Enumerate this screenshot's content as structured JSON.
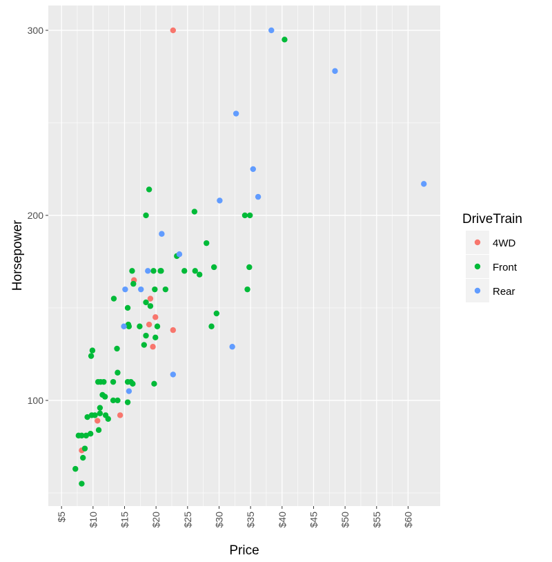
{
  "chart_data": {
    "type": "scatter",
    "title": "",
    "xlabel": "Price",
    "ylabel": "Horsepower",
    "xlim": [
      2.9,
      65.1
    ],
    "ylim": [
      42.9,
      313.4
    ],
    "x_ticks": [
      5,
      10,
      15,
      20,
      25,
      30,
      35,
      40,
      45,
      50,
      55,
      60
    ],
    "x_tick_labels": [
      "$5",
      "$10",
      "$15",
      "$20",
      "$25",
      "$30",
      "$35",
      "$40",
      "$45",
      "$50",
      "$55",
      "$60"
    ],
    "y_ticks": [
      100,
      200,
      300
    ],
    "y_tick_labels": [
      "100",
      "200",
      "300"
    ],
    "grid": true,
    "legend": {
      "title": "DriveTrain",
      "position": "right",
      "entries": [
        "4WD",
        "Front",
        "Rear"
      ]
    },
    "colors": {
      "4WD": "#F8766D",
      "Front": "#00BA38",
      "Rear": "#619CFF"
    },
    "series": [
      {
        "name": "4WD",
        "points": [
          [
            22.7,
            300
          ],
          [
            16.5,
            165
          ],
          [
            19.1,
            155
          ],
          [
            19.9,
            145
          ],
          [
            18.9,
            141
          ],
          [
            22.7,
            138
          ],
          [
            19.5,
            129
          ],
          [
            10.7,
            89
          ],
          [
            14.3,
            92
          ],
          [
            8.2,
            73
          ]
        ]
      },
      {
        "name": "Front",
        "points": [
          [
            40.4,
            295
          ],
          [
            18.9,
            214
          ],
          [
            26.1,
            202
          ],
          [
            18.4,
            200
          ],
          [
            34.9,
            200
          ],
          [
            34.1,
            200
          ],
          [
            28.0,
            185
          ],
          [
            23.3,
            178
          ],
          [
            34.8,
            172
          ],
          [
            26.2,
            170
          ],
          [
            26.9,
            168
          ],
          [
            29.2,
            172
          ],
          [
            24.5,
            170
          ],
          [
            16.2,
            170
          ],
          [
            19.6,
            170
          ],
          [
            20.7,
            170
          ],
          [
            20.8,
            170
          ],
          [
            16.4,
            163
          ],
          [
            19.8,
            160
          ],
          [
            21.5,
            160
          ],
          [
            34.5,
            160
          ],
          [
            13.3,
            155
          ],
          [
            18.4,
            153
          ],
          [
            19.1,
            151
          ],
          [
            15.5,
            150
          ],
          [
            29.6,
            147
          ],
          [
            15.6,
            141
          ],
          [
            15.7,
            140
          ],
          [
            17.4,
            140
          ],
          [
            20.2,
            140
          ],
          [
            28.8,
            140
          ],
          [
            18.4,
            135
          ],
          [
            19.9,
            134
          ],
          [
            18.1,
            130
          ],
          [
            9.9,
            127
          ],
          [
            9.7,
            124
          ],
          [
            13.8,
            128
          ],
          [
            13.9,
            115
          ],
          [
            10.8,
            110
          ],
          [
            11.2,
            110
          ],
          [
            11.7,
            110
          ],
          [
            13.2,
            110
          ],
          [
            15.5,
            110
          ],
          [
            16.0,
            110
          ],
          [
            16.3,
            109
          ],
          [
            19.7,
            109
          ],
          [
            11.5,
            103
          ],
          [
            11.9,
            102
          ],
          [
            13.2,
            100
          ],
          [
            13.9,
            100
          ],
          [
            15.5,
            99
          ],
          [
            11.1,
            96
          ],
          [
            11.1,
            93
          ],
          [
            9.1,
            91
          ],
          [
            9.8,
            92
          ],
          [
            10.3,
            92
          ],
          [
            12.0,
            92
          ],
          [
            12.4,
            90
          ],
          [
            10.9,
            84
          ],
          [
            7.7,
            81
          ],
          [
            8.2,
            81
          ],
          [
            8.9,
            81
          ],
          [
            9.6,
            82
          ],
          [
            8.7,
            74
          ],
          [
            8.4,
            69
          ],
          [
            7.2,
            63
          ],
          [
            8.2,
            55
          ]
        ]
      },
      {
        "name": "Rear",
        "points": [
          [
            38.3,
            300
          ],
          [
            48.4,
            278
          ],
          [
            32.7,
            255
          ],
          [
            35.4,
            225
          ],
          [
            36.2,
            210
          ],
          [
            30.1,
            208
          ],
          [
            62.5,
            217
          ],
          [
            20.9,
            190
          ],
          [
            23.7,
            179
          ],
          [
            18.7,
            170
          ],
          [
            15.1,
            160
          ],
          [
            17.6,
            160
          ],
          [
            14.9,
            140
          ],
          [
            32.1,
            129
          ],
          [
            22.7,
            114
          ],
          [
            15.7,
            105
          ]
        ]
      }
    ]
  }
}
